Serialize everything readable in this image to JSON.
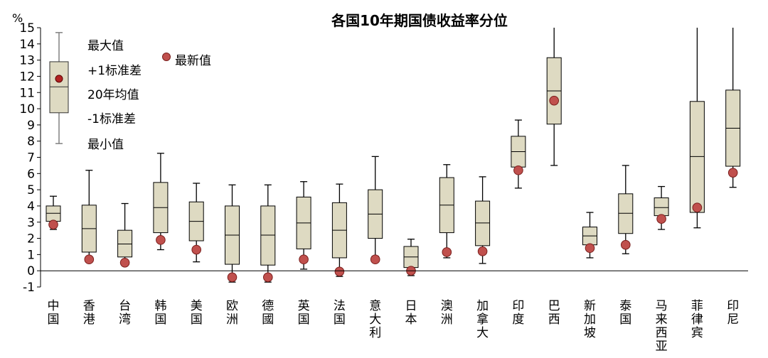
{
  "chart_data": {
    "type": "box",
    "title": "各国10年期国债收益率分位",
    "unit": "%",
    "ylim": [
      -1,
      15
    ],
    "yticks": [
      -1,
      0,
      1,
      2,
      3,
      4,
      5,
      6,
      7,
      8,
      9,
      10,
      11,
      12,
      13,
      14,
      15
    ],
    "categories": [
      "中国",
      "香港",
      "台湾",
      "韩国",
      "美国",
      "欧洲",
      "德國",
      "英国",
      "法国",
      "意大利",
      "日本",
      "澳洲",
      "加拿大",
      "印度",
      "巴西",
      "新加坡",
      "泰国",
      "马来西亚",
      "菲律宾",
      "印尼"
    ],
    "series": [
      {
        "name": "最大值",
        "values": [
          4.6,
          6.2,
          4.15,
          7.25,
          5.4,
          5.3,
          5.3,
          5.5,
          5.35,
          7.05,
          1.95,
          6.55,
          5.8,
          9.3,
          15.0,
          3.6,
          6.5,
          5.2,
          15.0,
          15.0
        ]
      },
      {
        "name": "+1标准差",
        "values": [
          4.0,
          4.05,
          2.5,
          5.45,
          4.25,
          4.0,
          4.0,
          4.55,
          4.2,
          5.0,
          1.5,
          5.75,
          4.3,
          8.3,
          13.15,
          2.7,
          4.75,
          4.5,
          10.45,
          11.15
        ]
      },
      {
        "name": "20年均值",
        "values": [
          3.55,
          2.6,
          1.65,
          3.9,
          3.05,
          2.2,
          2.2,
          2.95,
          2.5,
          3.5,
          0.85,
          4.05,
          2.95,
          7.35,
          11.1,
          2.15,
          3.55,
          3.9,
          7.05,
          8.8
        ]
      },
      {
        "name": "-1标准差",
        "values": [
          3.05,
          1.15,
          0.85,
          2.35,
          1.85,
          0.4,
          0.35,
          1.35,
          0.8,
          2.0,
          0.2,
          2.35,
          1.55,
          6.4,
          9.05,
          1.6,
          2.3,
          3.4,
          3.6,
          6.45
        ]
      },
      {
        "name": "最小值",
        "values": [
          2.55,
          0.85,
          0.55,
          1.3,
          0.55,
          -0.7,
          -0.7,
          0.1,
          -0.35,
          0.9,
          -0.3,
          0.8,
          0.45,
          5.1,
          6.5,
          0.8,
          1.05,
          2.55,
          2.65,
          5.15
        ]
      },
      {
        "name": "最新值",
        "values": [
          2.85,
          0.7,
          0.5,
          1.9,
          1.3,
          -0.4,
          -0.4,
          0.7,
          -0.05,
          0.7,
          0.0,
          1.15,
          1.2,
          6.2,
          10.5,
          1.4,
          1.6,
          3.2,
          3.9,
          6.05
        ]
      }
    ],
    "legend": {
      "items": [
        "最大值",
        "+1标准差",
        "20年均值",
        "-1标准差",
        "最小值"
      ],
      "latest_label": "最新值",
      "example": {
        "max": 14.7,
        "upper": 12.9,
        "mean": 11.35,
        "lower": 9.75,
        "min": 7.85,
        "latest": 11.85
      },
      "placement": "top-left"
    },
    "colors": {
      "box_fill": "#dedac2",
      "box_stroke": "#000000",
      "latest_fill": "#c0504d",
      "latest_stroke": "#7a1f1d",
      "legend_whisker": "#808080",
      "legend_latest_fill": "#b22222"
    },
    "grid": false
  }
}
